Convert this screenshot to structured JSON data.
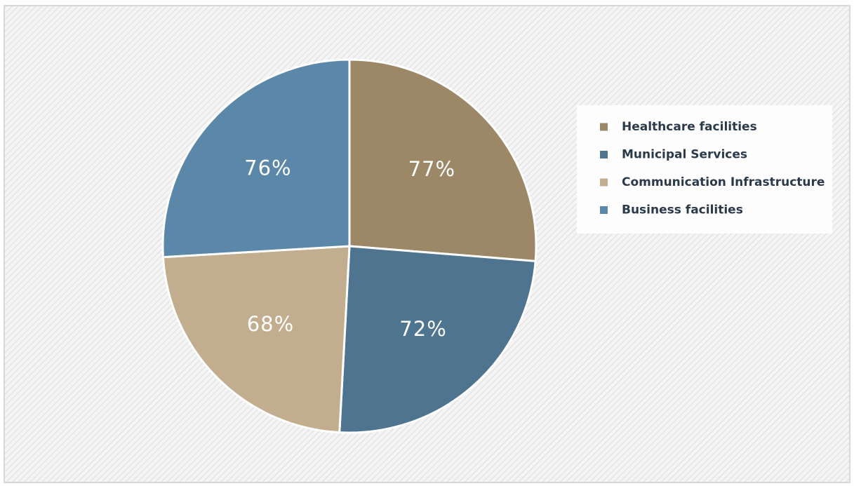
{
  "chart_data": {
    "type": "pie",
    "categories": [
      "Healthcare facilities",
      "Municipal Services",
      "Communication Infrastructure",
      "Business facilities"
    ],
    "values": [
      77,
      72,
      68,
      76
    ],
    "value_labels": [
      "77%",
      "72%",
      "68%",
      "76%"
    ],
    "colors": [
      "#9c8866",
      "#4e7490",
      "#c2ae8e",
      "#5b87a8"
    ],
    "legend": "right"
  }
}
